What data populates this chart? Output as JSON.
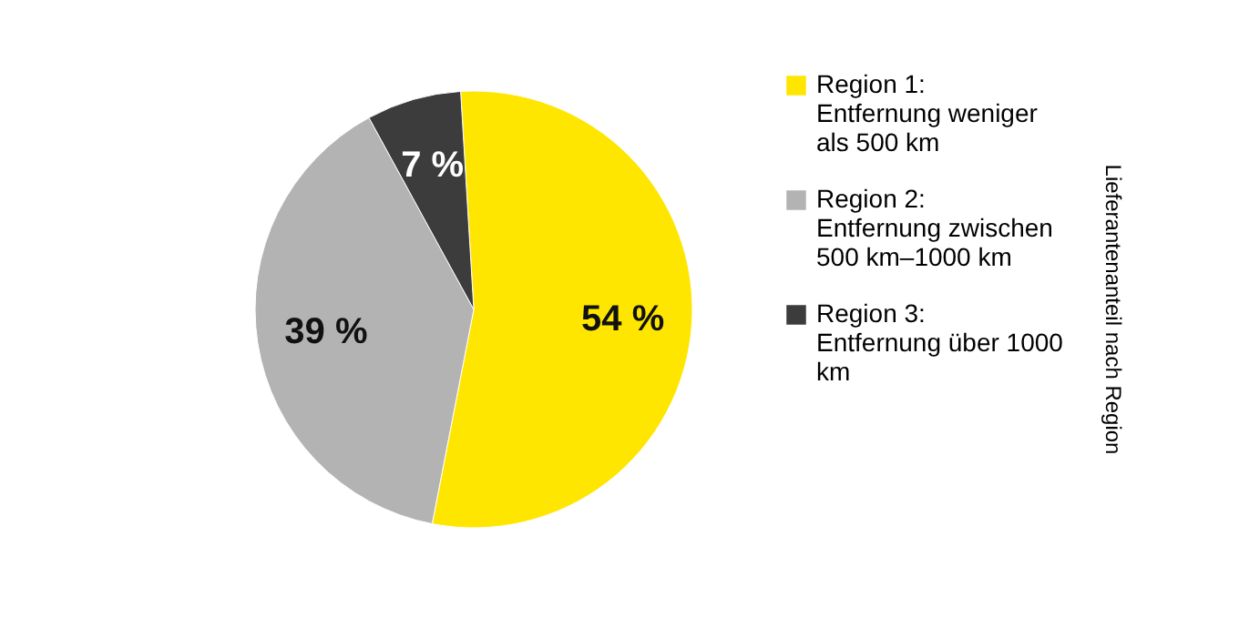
{
  "chart_data": {
    "type": "pie",
    "title": "Lieferantenanteil nach Region",
    "categories": [
      "Region 1: Entfernung weniger als 500 km",
      "Region 2: Entfernung zwischen 500 km–1000 km",
      "Region 3: Entfernung über 1000 km"
    ],
    "values": [
      54,
      39,
      7
    ],
    "colors": [
      "#ffe600",
      "#b3b3b3",
      "#3c3c3c"
    ],
    "value_labels": [
      "54 %",
      "39 %",
      "7 %"
    ],
    "legend": "right"
  }
}
